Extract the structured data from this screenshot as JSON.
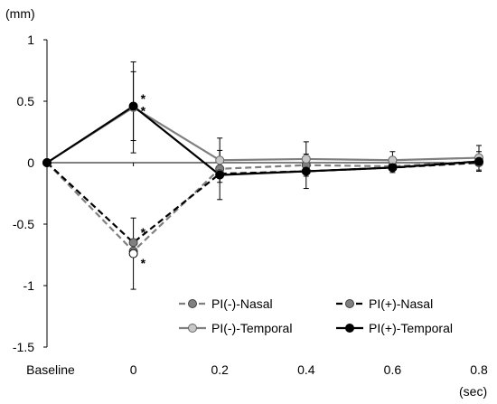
{
  "chart_data": {
    "type": "line",
    "title": "",
    "ylabel": "(mm)",
    "xlabel": "(sec)",
    "categories": [
      "Baseline",
      "0",
      "0.2",
      "0.4",
      "0.6",
      "0.8"
    ],
    "ylim": [
      -1.5,
      1
    ],
    "yticks": [
      1,
      0.5,
      0,
      -0.5,
      -1,
      -1.5
    ],
    "ytick_labels": [
      "1",
      "0.5",
      "0",
      "-0.5",
      "-1",
      "-1.5"
    ],
    "grid": false,
    "legend_position": "bottom-right",
    "series": [
      {
        "name": "PI(-)-Nasal",
        "values": [
          0,
          -0.72,
          -0.05,
          -0.02,
          -0.03,
          0.01
        ],
        "err": [
          0,
          0,
          0,
          0,
          0,
          0
        ],
        "line_color": "#7f7f7f",
        "dash": "dashed",
        "marker_fill": "#808080",
        "marker_stroke": "#404040"
      },
      {
        "name": "PI(+)-Nasal",
        "values": [
          0,
          -0.65,
          -0.09,
          -0.07,
          -0.04,
          0.0
        ],
        "err": [
          0,
          0,
          0,
          0,
          0,
          0
        ],
        "line_color": "#000000",
        "dash": "dashed",
        "marker_fill": "#808080",
        "marker_stroke": "#404040"
      },
      {
        "name": "PI(-)-Temporal",
        "values": [
          0,
          0.45,
          0.02,
          0.03,
          0.02,
          0.04
        ],
        "err": [
          0,
          0.37,
          0.18,
          0.14,
          0.07,
          0.1
        ],
        "line_color": "#7f7f7f",
        "dash": "solid",
        "marker_fill": "#c8c8c8",
        "marker_stroke": "#666666"
      },
      {
        "name": "PI(+)-Temporal",
        "values": [
          0,
          0.46,
          -0.1,
          -0.07,
          -0.04,
          0.01
        ],
        "err": [
          0,
          0.28,
          0.2,
          0.14,
          0.04,
          0.08
        ],
        "line_color": "#000000",
        "dash": "solid",
        "marker_fill": "#000000",
        "marker_stroke": "#000000"
      }
    ],
    "extra_points": [
      {
        "category": "0",
        "value": -0.74,
        "err": 0.29,
        "marker_fill": "#ffffff",
        "marker_stroke": "#000000"
      }
    ],
    "annotations": [
      {
        "text": "*",
        "category": "0",
        "value": 0.53
      },
      {
        "text": "*",
        "category": "0",
        "value": 0.43
      },
      {
        "text": "*",
        "category": "0",
        "value": -0.56
      },
      {
        "text": "*",
        "category": "0",
        "value": -0.81
      }
    ]
  }
}
